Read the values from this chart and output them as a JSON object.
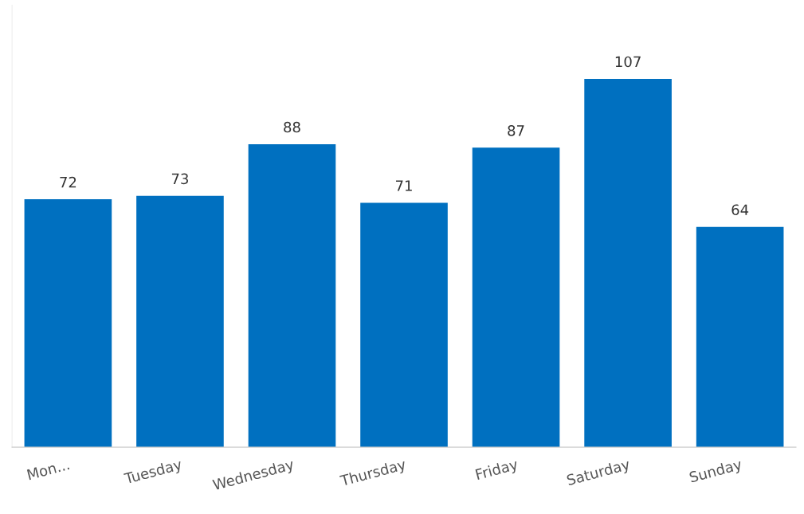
{
  "chart_data": {
    "type": "bar",
    "categories": [
      "Mon...",
      "Tuesday",
      "Wednesday",
      "Thursday",
      "Friday",
      "Saturday",
      "Sunday"
    ],
    "values": [
      72,
      73,
      88,
      71,
      87,
      107,
      64
    ],
    "color": "#0070c0",
    "data_labels": true,
    "tick_labels": "x",
    "grid": false,
    "legend": false
  }
}
